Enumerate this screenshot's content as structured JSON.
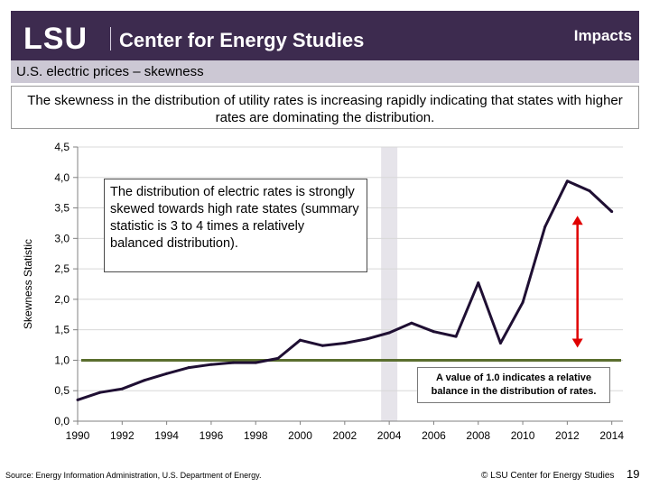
{
  "header": {
    "logo": "LSU",
    "org": "Center for Energy Studies",
    "section": "Impacts",
    "bg_color": "#3d2b4f"
  },
  "subtitle": "U.S. electric prices – skewness",
  "intro": "The skewness in the distribution of utility rates is increasing rapidly indicating that states with higher rates are dominating the distribution.",
  "callout": "The distribution of electric rates is strongly skewed towards high rate states (summary statistic is 3 to 4 times a relatively balanced distribution).",
  "note": "A value of 1.0 indicates a relative balance in the distribution of rates.",
  "footer": {
    "source": "Source:  Energy Information Administration, U.S. Department of Energy.",
    "copyright": "© LSU Center for Energy Studies",
    "page": "19"
  },
  "chart_data": {
    "type": "line",
    "title": "",
    "xlabel": "",
    "ylabel": "Skewness Statistic",
    "xlim": [
      1990,
      2014.5
    ],
    "ylim": [
      0,
      4.5
    ],
    "x_ticks": [
      "1990",
      "1992",
      "1994",
      "1996",
      "1998",
      "2000",
      "2002",
      "2004",
      "2006",
      "2008",
      "2010",
      "2012",
      "2014"
    ],
    "y_ticks": [
      "0,0",
      "0,5",
      "1,0",
      "1,5",
      "2,0",
      "2,5",
      "3,0",
      "3,5",
      "4,0",
      "4,5"
    ],
    "grid": "horizontal",
    "series": [
      {
        "name": "",
        "color": "#1f0f33",
        "x": [
          1990,
          1991,
          1992,
          1993,
          1994,
          1995,
          1996,
          1997,
          1998,
          1999,
          2000,
          2001,
          2002,
          2003,
          2004,
          2005,
          2006,
          2007,
          2008,
          2009,
          2010,
          2011,
          2012,
          2013,
          2014
        ],
        "values": [
          0.35,
          0.47,
          0.53,
          0.67,
          0.78,
          0.88,
          0.93,
          0.96,
          0.96,
          1.03,
          1.33,
          1.24,
          1.28,
          1.35,
          1.45,
          1.61,
          1.47,
          1.39,
          2.27,
          1.28,
          1.95,
          3.19,
          3.94,
          3.78,
          3.44
        ]
      }
    ],
    "reference_line": {
      "y": 1.0,
      "color": "#5a6e2e"
    },
    "highlight_band": {
      "x": 2004,
      "color": "#e6e4ea"
    },
    "arrow": {
      "x": 2014.0,
      "from": 1.0,
      "to": 3.4,
      "color": "#e00000"
    }
  }
}
